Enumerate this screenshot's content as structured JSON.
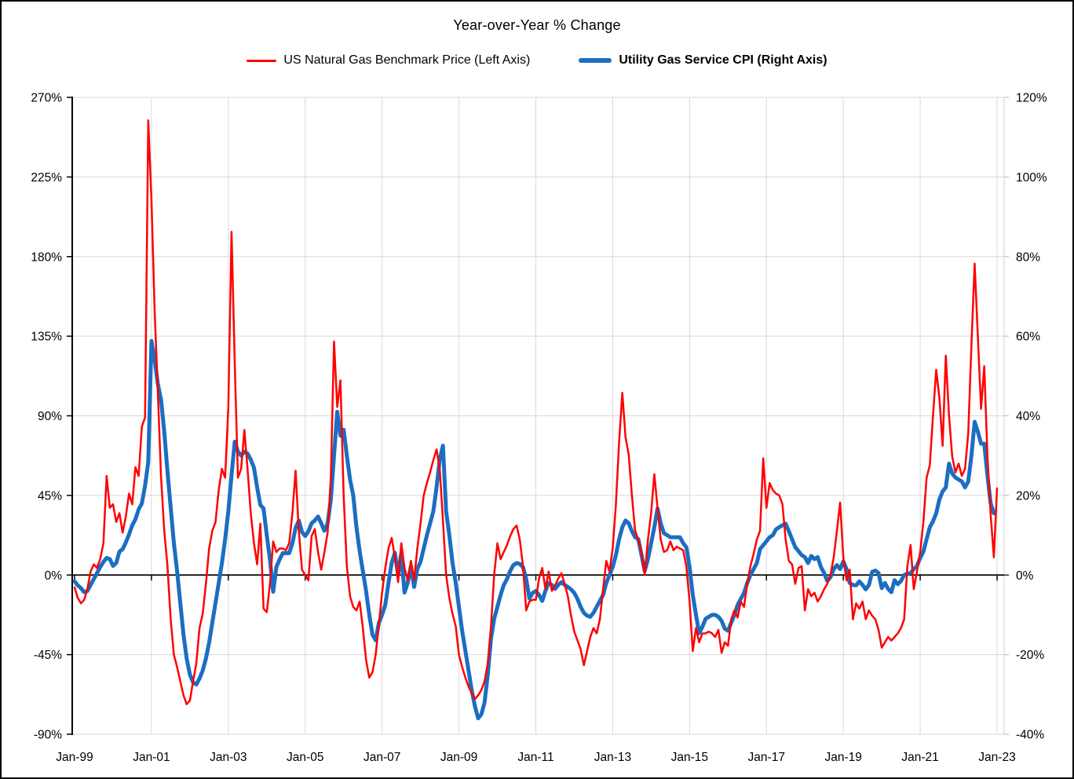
{
  "chart_data": {
    "type": "line",
    "title": "Year-over-Year % Change",
    "legend_position": "top",
    "grid": true,
    "grid_color": "#d9d9d9",
    "axis_color": "#000000",
    "background_color": "#ffffff",
    "x_unit": "month",
    "x_start": "Jan-1999",
    "x_end": "Jan-2023",
    "x_tick_labels": [
      "Jan-99",
      "Jan-01",
      "Jan-03",
      "Jan-05",
      "Jan-07",
      "Jan-09",
      "Jan-11",
      "Jan-13",
      "Jan-15",
      "Jan-17",
      "Jan-19",
      "Jan-21",
      "Jan-23"
    ],
    "left_axis": {
      "tick_labels": [
        "270%",
        "225%",
        "180%",
        "135%",
        "90%",
        "45%",
        "0%",
        "-45%",
        "-90%"
      ],
      "max": 270,
      "min": -90
    },
    "right_axis": {
      "tick_labels": [
        "120%",
        "100%",
        "80%",
        "60%",
        "40%",
        "20%",
        "0%",
        "-20%",
        "-40%"
      ],
      "max": 120,
      "min": -40
    },
    "series": [
      {
        "name": "US Natural Gas Benchmark Price (Left Axis)",
        "axis": "left",
        "color": "#ff0000",
        "width": 2.5,
        "bold_legend": false,
        "start": "1999-01",
        "freq": "monthly",
        "values": [
          -7,
          -13,
          -16,
          -14,
          -8,
          2,
          6,
          4,
          9,
          18,
          56,
          38,
          40,
          30,
          35,
          24,
          33,
          46,
          40,
          61,
          56,
          84,
          89,
          257,
          212,
          149,
          103,
          55,
          25,
          5,
          -25,
          -45,
          -52,
          -60,
          -68,
          -73,
          -71,
          -60,
          -50,
          -30,
          -22,
          -5,
          15,
          25,
          30,
          48,
          60,
          55,
          95,
          194,
          120,
          55,
          60,
          82,
          60,
          35,
          18,
          6,
          29,
          -19,
          -21,
          -5,
          19,
          13,
          15,
          15,
          14,
          18,
          35,
          59,
          25,
          3,
          0,
          -3,
          22,
          26,
          13,
          3,
          13,
          24,
          55,
          132,
          95,
          110,
          45,
          5,
          -12,
          -18,
          -20,
          -15,
          -30,
          -48,
          -58,
          -55,
          -45,
          -28,
          -10,
          4,
          15,
          21,
          10,
          -4,
          18,
          4,
          -3,
          8,
          -3,
          15,
          29,
          45,
          52,
          58,
          65,
          71,
          60,
          31,
          0,
          -13,
          -22,
          -29,
          -45,
          -52,
          -58,
          -63,
          -67,
          -70,
          -68,
          -65,
          -60,
          -50,
          -29,
          0,
          18,
          9,
          13,
          17,
          22,
          26,
          28,
          20,
          5,
          -20,
          -15,
          -14,
          -14,
          -2,
          4,
          -8,
          2,
          -9,
          -6,
          -2,
          1,
          -5,
          -12,
          -23,
          -32,
          -37,
          -42,
          -51,
          -43,
          -35,
          -30,
          -33,
          -25,
          -8,
          8,
          2,
          15,
          40,
          75,
          103,
          78,
          68,
          45,
          25,
          20,
          13,
          0,
          20,
          35,
          57,
          38,
          20,
          13,
          14,
          19,
          14,
          16,
          15,
          14,
          5,
          -15,
          -43,
          -30,
          -38,
          -33,
          -33,
          -32,
          -33,
          -35,
          -31,
          -44,
          -38,
          -40,
          -25,
          -20,
          -24,
          -15,
          -18,
          -5,
          5,
          12,
          20,
          25,
          66,
          38,
          52,
          48,
          46,
          45,
          40,
          20,
          8,
          6,
          -5,
          4,
          5,
          -20,
          -8,
          -12,
          -10,
          -15,
          -12,
          -8,
          -5,
          0,
          10,
          25,
          41,
          10,
          -3,
          3,
          -25,
          -16,
          -19,
          -15,
          -25,
          -20,
          -23,
          -25,
          -31,
          -41,
          -38,
          -35,
          -37,
          -35,
          -33,
          -30,
          -25,
          5,
          17,
          -8,
          2,
          13,
          30,
          55,
          62,
          90,
          116,
          100,
          73,
          124,
          90,
          67,
          58,
          63,
          56,
          60,
          80,
          130,
          176,
          135,
          94,
          118,
          67,
          34,
          10,
          49
        ]
      },
      {
        "name": "Utility Gas Service CPI (Right Axis)",
        "axis": "right",
        "color": "#1b6ec2",
        "width": 5,
        "bold_legend": true,
        "start": "1999-01",
        "freq": "monthly",
        "values": [
          -1.6,
          -2.6,
          -3.3,
          -4.3,
          -4,
          -2.5,
          -1,
          0.5,
          2,
          3.3,
          4.3,
          4,
          2.3,
          3,
          5.9,
          6.5,
          8.2,
          10.2,
          12.5,
          14,
          16.5,
          18,
          22.4,
          28.4,
          58.8,
          54,
          48,
          44,
          36,
          26,
          17,
          8,
          1,
          -7,
          -15,
          -21,
          -25,
          -27,
          -27.5,
          -26,
          -24,
          -21,
          -17,
          -12,
          -7,
          -2,
          3,
          9,
          16,
          25,
          33.5,
          31,
          30,
          31,
          30.5,
          29,
          27,
          22,
          17.6,
          16.7,
          10,
          3.9,
          -4.2,
          2,
          3.9,
          5.5,
          5.5,
          5.5,
          8,
          11.8,
          13.7,
          10.8,
          9.8,
          11,
          13,
          13.7,
          14.7,
          13,
          11.1,
          13,
          18.9,
          30,
          41,
          35,
          36.5,
          30,
          24,
          20,
          12,
          6,
          1,
          -4,
          -10,
          -15,
          -16.4,
          -12,
          -10,
          -7.5,
          -2,
          3,
          5.6,
          0,
          5.5,
          -4.4,
          -2,
          2.2,
          -3,
          1.5,
          3.3,
          6.7,
          10,
          13,
          16,
          22,
          29,
          32.5,
          16,
          10,
          3,
          -2,
          -8,
          -14,
          -19,
          -24,
          -29,
          -33,
          -36,
          -35,
          -32,
          -25,
          -16,
          -11,
          -8,
          -5,
          -2.5,
          -1,
          1,
          2.5,
          3,
          2.8,
          2,
          -1,
          -5.9,
          -4.5,
          -4,
          -5,
          -6.5,
          -4,
          -2,
          -2.5,
          -3.5,
          -2.5,
          -1.8,
          -2.5,
          -3,
          -3.6,
          -4.5,
          -6,
          -8,
          -9.5,
          -10.2,
          -10.5,
          -9.5,
          -8,
          -6.5,
          -5,
          -2,
          0,
          2,
          5,
          9,
          12,
          13.7,
          13,
          11,
          9.5,
          9,
          5,
          1,
          4,
          8,
          12,
          16.7,
          13,
          10.5,
          10,
          9.5,
          9.5,
          9.5,
          9.5,
          8,
          7,
          2,
          -5,
          -10,
          -14.6,
          -13,
          -11,
          -10.5,
          -10,
          -10,
          -10.5,
          -11.5,
          -13.5,
          -14,
          -12,
          -10,
          -7.5,
          -6,
          -4.5,
          -2,
          0,
          1.5,
          3,
          6.5,
          7.5,
          8.5,
          9.5,
          10,
          11.5,
          12,
          12.5,
          12.9,
          11,
          9,
          7,
          6,
          5,
          4.5,
          3,
          4.8,
          4,
          4.5,
          2,
          0.5,
          -1.5,
          -0.5,
          1.5,
          2.5,
          1.5,
          3.4,
          1.5,
          -2,
          -2.5,
          -2.6,
          -1.6,
          -2.5,
          -3.6,
          -2.5,
          0.8,
          1.1,
          0.5,
          -3.3,
          -2,
          -3.5,
          -4.3,
          -1.3,
          -2.3,
          -1.5,
          0,
          0.3,
          0.5,
          1.5,
          2.3,
          4.3,
          5.9,
          9,
          12,
          13.5,
          15.5,
          19,
          21,
          22,
          28,
          25.5,
          24.5,
          24,
          23.5,
          22,
          23.5,
          30,
          38.5,
          36,
          33,
          33,
          25,
          18,
          15.5,
          null
        ]
      }
    ]
  }
}
